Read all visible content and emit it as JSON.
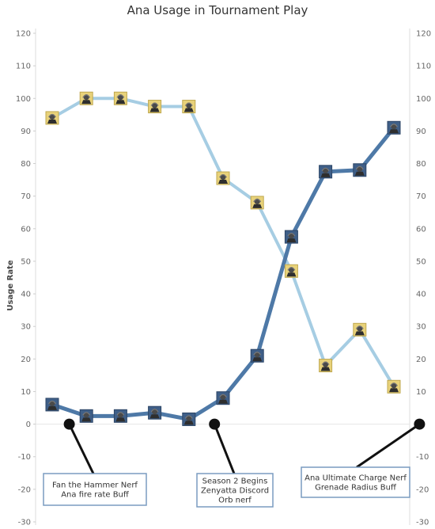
{
  "chart_data": {
    "type": "line",
    "title": "Ana Usage in Tournament Play",
    "ylabel": "Usage Rate",
    "ylim": [
      -30,
      120
    ],
    "yticks": [
      -30,
      -20,
      -10,
      0,
      10,
      20,
      30,
      40,
      50,
      60,
      70,
      80,
      90,
      100,
      110,
      120
    ],
    "x": [
      1,
      2,
      3,
      4,
      5,
      6,
      7,
      8,
      9,
      10,
      11,
      12
    ],
    "series": [
      {
        "name": "",
        "color": "#a6cde3",
        "values": [
          94,
          100,
          100,
          97.5,
          97.5,
          75.5,
          68,
          47,
          18,
          29,
          11.5,
          null
        ]
      },
      {
        "name": "",
        "color": "#4e79a7",
        "values": [
          6,
          2.5,
          2.5,
          3.5,
          1.5,
          8,
          21,
          57.5,
          77.5,
          78,
          91,
          null
        ]
      }
    ],
    "annotations": [
      {
        "lines": [
          "Fan the Hammer Nerf",
          "Ana fire rate Buff"
        ],
        "x": 1.5,
        "y": 0
      },
      {
        "lines": [
          "Season 2 Begins",
          "Zenyatta Discord",
          "Orb nerf"
        ],
        "x": 5.75,
        "y": 0
      },
      {
        "lines": [
          "Ana Ultimate Charge Nerf",
          "Grenade Radius Buff"
        ],
        "x": 11.75,
        "y": 0
      }
    ],
    "marker_icon": "ana-portrait-icon",
    "grid": false,
    "dual_axis": true,
    "zero_line": true
  }
}
